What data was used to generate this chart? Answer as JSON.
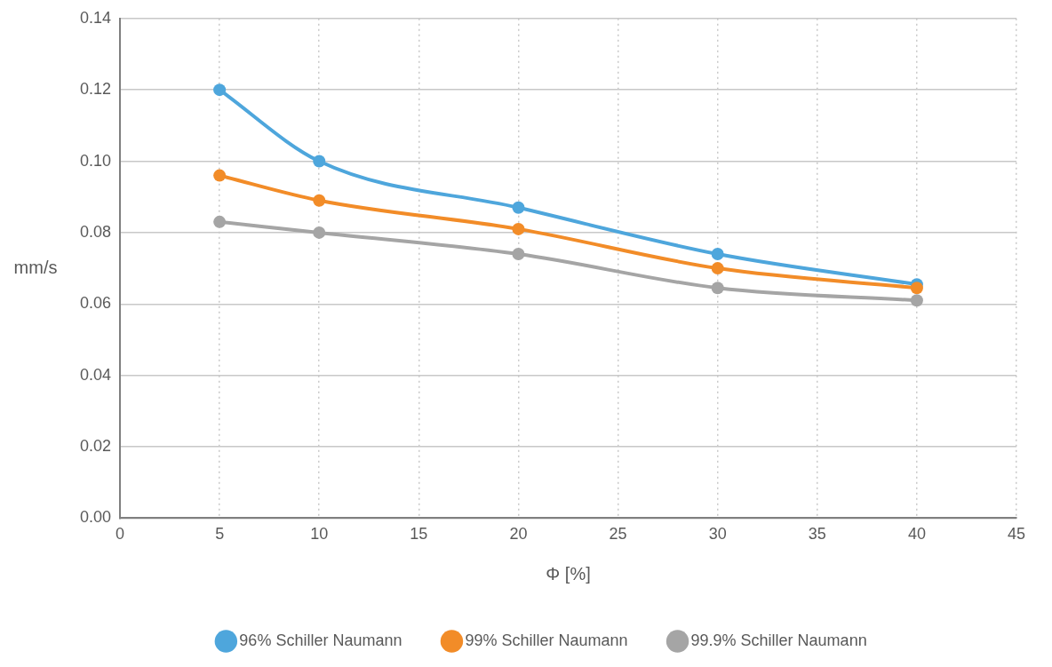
{
  "chart_data": {
    "type": "line",
    "xlabel": "Φ [%]",
    "ylabel": "mm/s",
    "x": [
      5,
      10,
      20,
      30,
      40
    ],
    "series": [
      {
        "name": "96% Schiller Naumann",
        "color": "#4ea6dc",
        "values": [
          0.12,
          0.1,
          0.087,
          0.074,
          0.0655
        ]
      },
      {
        "name": "99% Schiller Naumann",
        "color": "#f28c28",
        "values": [
          0.096,
          0.089,
          0.081,
          0.07,
          0.0645
        ]
      },
      {
        "name": "99.9% Schiller Naumann",
        "color": "#a5a5a5",
        "values": [
          0.083,
          0.08,
          0.074,
          0.0645,
          0.061
        ]
      }
    ],
    "xlim": [
      0,
      45
    ],
    "xticks": [
      0,
      5,
      10,
      15,
      20,
      25,
      30,
      35,
      40,
      45
    ],
    "ylim": [
      0,
      0.14
    ],
    "yticks": [
      {
        "value": 0,
        "label": "0.00"
      },
      {
        "value": 0.02,
        "label": "0.02"
      },
      {
        "value": 0.04,
        "label": "0.04"
      },
      {
        "value": 0.06,
        "label": "0.06"
      },
      {
        "value": 0.08,
        "label": "0.08"
      },
      {
        "value": 0.1,
        "label": "0.10"
      },
      {
        "value": 0.12,
        "label": "0.12"
      },
      {
        "value": 0.14,
        "label": "0.14"
      }
    ],
    "grid": true,
    "legend": "bottom",
    "marker": "circle",
    "line_style": "solid"
  }
}
